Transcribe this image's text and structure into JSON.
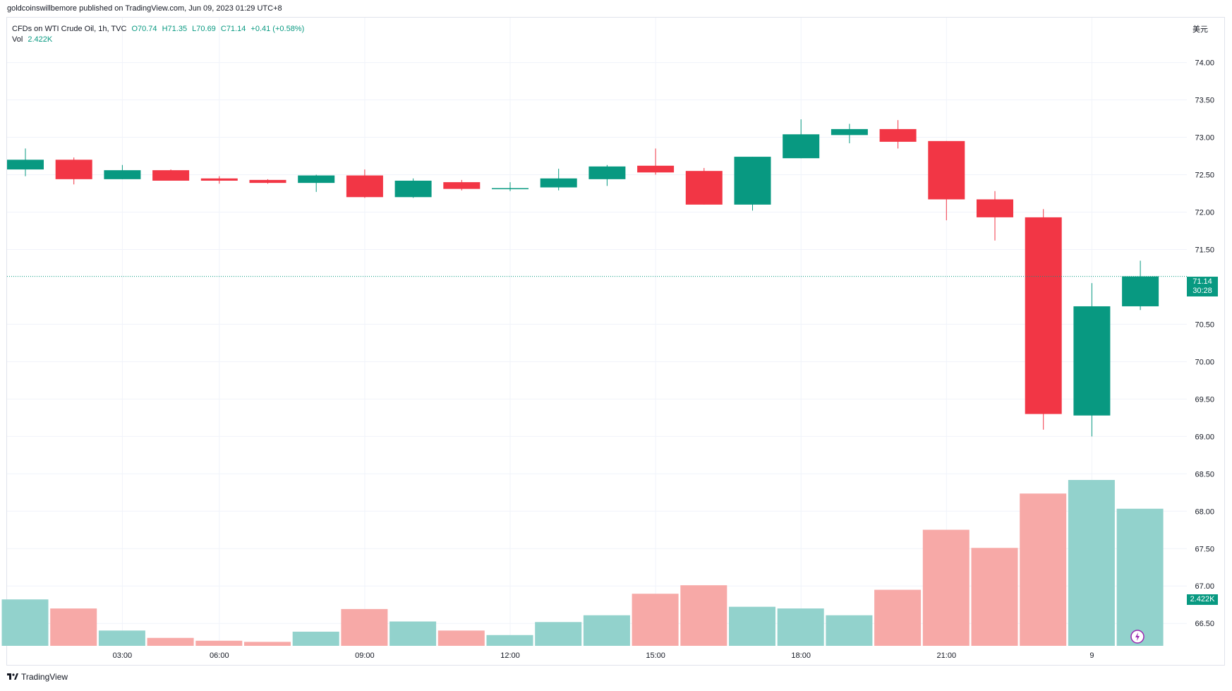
{
  "header": {
    "published": "goldcoinswillbemore published on TradingView.com, Jun 09, 2023 01:29 UTC+8"
  },
  "legend": {
    "symbol": "CFDs on WTI Crude Oil, 1h, TVC",
    "open": "O70.74",
    "high": "H71.35",
    "low": "L70.69",
    "close": "C71.14",
    "change": "+0.41 (+0.58%)",
    "vol_label": "Vol",
    "vol_value": "2.422K"
  },
  "axis": {
    "currency": "美元",
    "last_price": "71.14",
    "countdown": "30:28",
    "volume_tag": "2.422K"
  },
  "footer": {
    "brand": "TradingView"
  },
  "colors": {
    "up": "#089981",
    "down": "#f23645",
    "vol_up": "#92d2cc",
    "vol_down": "#f7a9a7"
  },
  "chart_data": {
    "type": "candlestick",
    "symbol": "CFDs on WTI Crude Oil",
    "interval": "1h",
    "y_axis": {
      "min": 66.2,
      "max": 74.6,
      "ticks": [
        74.0,
        73.5,
        73.0,
        72.5,
        72.0,
        71.5,
        70.5,
        70.0,
        69.5,
        69.0,
        68.5,
        68.0,
        67.5,
        67.0,
        66.5
      ]
    },
    "x_ticks": [
      {
        "label": "03:00",
        "index": 2
      },
      {
        "label": "06:00",
        "index": 4
      },
      {
        "label": "09:00",
        "index": 7
      },
      {
        "label": "12:00",
        "index": 10
      },
      {
        "label": "15:00",
        "index": 13
      },
      {
        "label": "18:00",
        "index": 16
      },
      {
        "label": "21:00",
        "index": 19
      },
      {
        "label": "9",
        "index": 22
      }
    ],
    "candles": [
      {
        "o": 72.57,
        "h": 72.85,
        "l": 72.48,
        "c": 72.7
      },
      {
        "o": 72.7,
        "h": 72.73,
        "l": 72.37,
        "c": 72.44
      },
      {
        "o": 72.44,
        "h": 72.63,
        "l": 72.44,
        "c": 72.56
      },
      {
        "o": 72.56,
        "h": 72.57,
        "l": 72.42,
        "c": 72.42
      },
      {
        "o": 72.45,
        "h": 72.48,
        "l": 72.38,
        "c": 72.42
      },
      {
        "o": 72.43,
        "h": 72.44,
        "l": 72.38,
        "c": 72.39
      },
      {
        "o": 72.39,
        "h": 72.5,
        "l": 72.27,
        "c": 72.49
      },
      {
        "o": 72.49,
        "h": 72.57,
        "l": 72.19,
        "c": 72.2
      },
      {
        "o": 72.2,
        "h": 72.45,
        "l": 72.19,
        "c": 72.42
      },
      {
        "o": 72.4,
        "h": 72.43,
        "l": 72.29,
        "c": 72.31
      },
      {
        "o": 72.31,
        "h": 72.4,
        "l": 72.28,
        "c": 72.32
      },
      {
        "o": 72.33,
        "h": 72.58,
        "l": 72.29,
        "c": 72.45
      },
      {
        "o": 72.44,
        "h": 72.63,
        "l": 72.35,
        "c": 72.61
      },
      {
        "o": 72.62,
        "h": 72.85,
        "l": 72.5,
        "c": 72.53
      },
      {
        "o": 72.55,
        "h": 72.59,
        "l": 72.1,
        "c": 72.1
      },
      {
        "o": 72.1,
        "h": 72.74,
        "l": 72.02,
        "c": 72.74
      },
      {
        "o": 72.72,
        "h": 73.24,
        "l": 72.72,
        "c": 73.04
      },
      {
        "o": 73.03,
        "h": 73.18,
        "l": 72.92,
        "c": 73.11
      },
      {
        "o": 73.11,
        "h": 73.23,
        "l": 72.85,
        "c": 72.94
      },
      {
        "o": 72.95,
        "h": 72.95,
        "l": 71.89,
        "c": 72.17
      },
      {
        "o": 72.17,
        "h": 72.28,
        "l": 71.62,
        "c": 71.93
      },
      {
        "o": 71.93,
        "h": 72.04,
        "l": 69.09,
        "c": 69.3
      },
      {
        "o": 69.28,
        "h": 71.05,
        "l": 69.0,
        "c": 70.74
      },
      {
        "o": 70.74,
        "h": 71.35,
        "l": 70.69,
        "c": 71.14
      }
    ],
    "volume": [
      {
        "v": 0.82,
        "dir": "up"
      },
      {
        "v": 0.66,
        "dir": "down"
      },
      {
        "v": 0.27,
        "dir": "up"
      },
      {
        "v": 0.14,
        "dir": "down"
      },
      {
        "v": 0.09,
        "dir": "down"
      },
      {
        "v": 0.07,
        "dir": "down"
      },
      {
        "v": 0.25,
        "dir": "up"
      },
      {
        "v": 0.65,
        "dir": "down"
      },
      {
        "v": 0.43,
        "dir": "up"
      },
      {
        "v": 0.27,
        "dir": "down"
      },
      {
        "v": 0.19,
        "dir": "up"
      },
      {
        "v": 0.42,
        "dir": "up"
      },
      {
        "v": 0.54,
        "dir": "up"
      },
      {
        "v": 0.92,
        "dir": "down"
      },
      {
        "v": 1.07,
        "dir": "down"
      },
      {
        "v": 0.69,
        "dir": "up"
      },
      {
        "v": 0.66,
        "dir": "up"
      },
      {
        "v": 0.54,
        "dir": "up"
      },
      {
        "v": 0.99,
        "dir": "down"
      },
      {
        "v": 2.05,
        "dir": "down"
      },
      {
        "v": 1.73,
        "dir": "down"
      },
      {
        "v": 2.69,
        "dir": "down"
      },
      {
        "v": 2.93,
        "dir": "up"
      },
      {
        "v": 2.422,
        "dir": "up"
      }
    ],
    "volume_unit": "K",
    "last_price": 71.14,
    "grid": true
  }
}
